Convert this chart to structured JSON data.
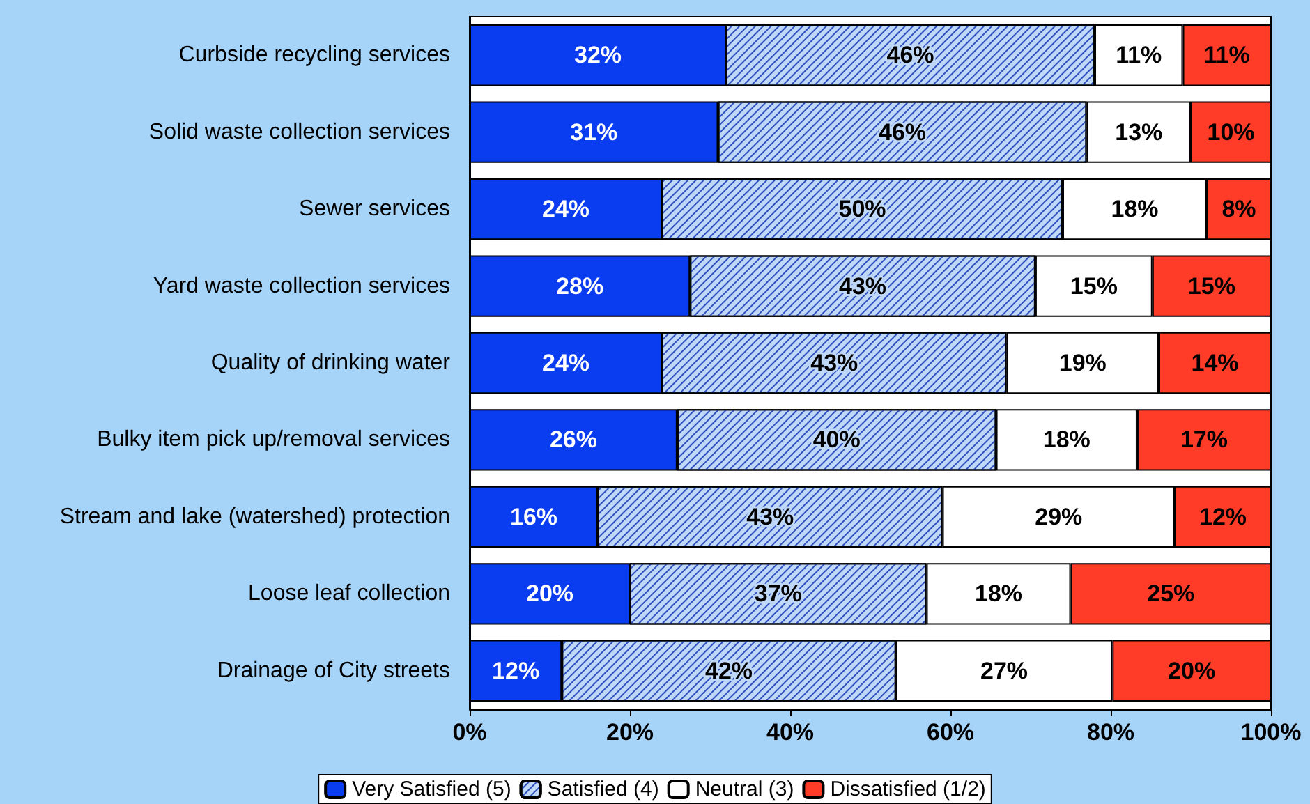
{
  "chart_data": {
    "type": "bar",
    "orientation": "horizontal",
    "stacked": true,
    "categories": [
      "Curbside recycling services",
      "Solid waste collection services",
      "Sewer services",
      "Yard waste collection services",
      "Quality of drinking water",
      "Bulky item pick up/removal services",
      "Stream and lake (watershed) protection",
      "Loose leaf collection",
      "Drainage of City streets"
    ],
    "series": [
      {
        "name": "Very Satisfied (5)",
        "color": "#0a3cf0",
        "values": [
          32,
          31,
          24,
          27.5,
          24,
          25.9,
          16,
          20,
          11.5
        ],
        "value_labels": [
          "32%",
          "31%",
          "24%",
          "28%",
          "24%",
          "26%",
          "16%",
          "20%",
          "12%"
        ]
      },
      {
        "name": "Satisfied (4)",
        "color": "#c0d8f8",
        "values": [
          46,
          46,
          50,
          43.1,
          43,
          39.8,
          43,
          37,
          41.7
        ],
        "value_labels": [
          "46%",
          "46%",
          "50%",
          "43%",
          "43%",
          "40%",
          "43%",
          "37%",
          "42%"
        ]
      },
      {
        "name": "Neutral (3)",
        "color": "#ffffff",
        "values": [
          11,
          13,
          18,
          14.6,
          19,
          17.6,
          29,
          18,
          27
        ],
        "value_labels": [
          "11%",
          "13%",
          "18%",
          "15%",
          "19%",
          "18%",
          "29%",
          "18%",
          "27%"
        ]
      },
      {
        "name": "Dissatisfied (1/2)",
        "color": "#ff3c28",
        "values": [
          11,
          10,
          8,
          14.8,
          14,
          16.7,
          12,
          25,
          19.8
        ],
        "value_labels": [
          "11%",
          "10%",
          "8%",
          "15%",
          "14%",
          "17%",
          "12%",
          "25%",
          "20%"
        ]
      }
    ],
    "xlim": [
      0,
      100
    ],
    "xticks": [
      {
        "value": 0,
        "label": "0%"
      },
      {
        "value": 20,
        "label": "20%"
      },
      {
        "value": 40,
        "label": "40%"
      },
      {
        "value": 60,
        "label": "60%"
      },
      {
        "value": 80,
        "label": "80%"
      },
      {
        "value": 100,
        "label": "100%"
      }
    ],
    "grid": false,
    "legend": "bottom"
  }
}
